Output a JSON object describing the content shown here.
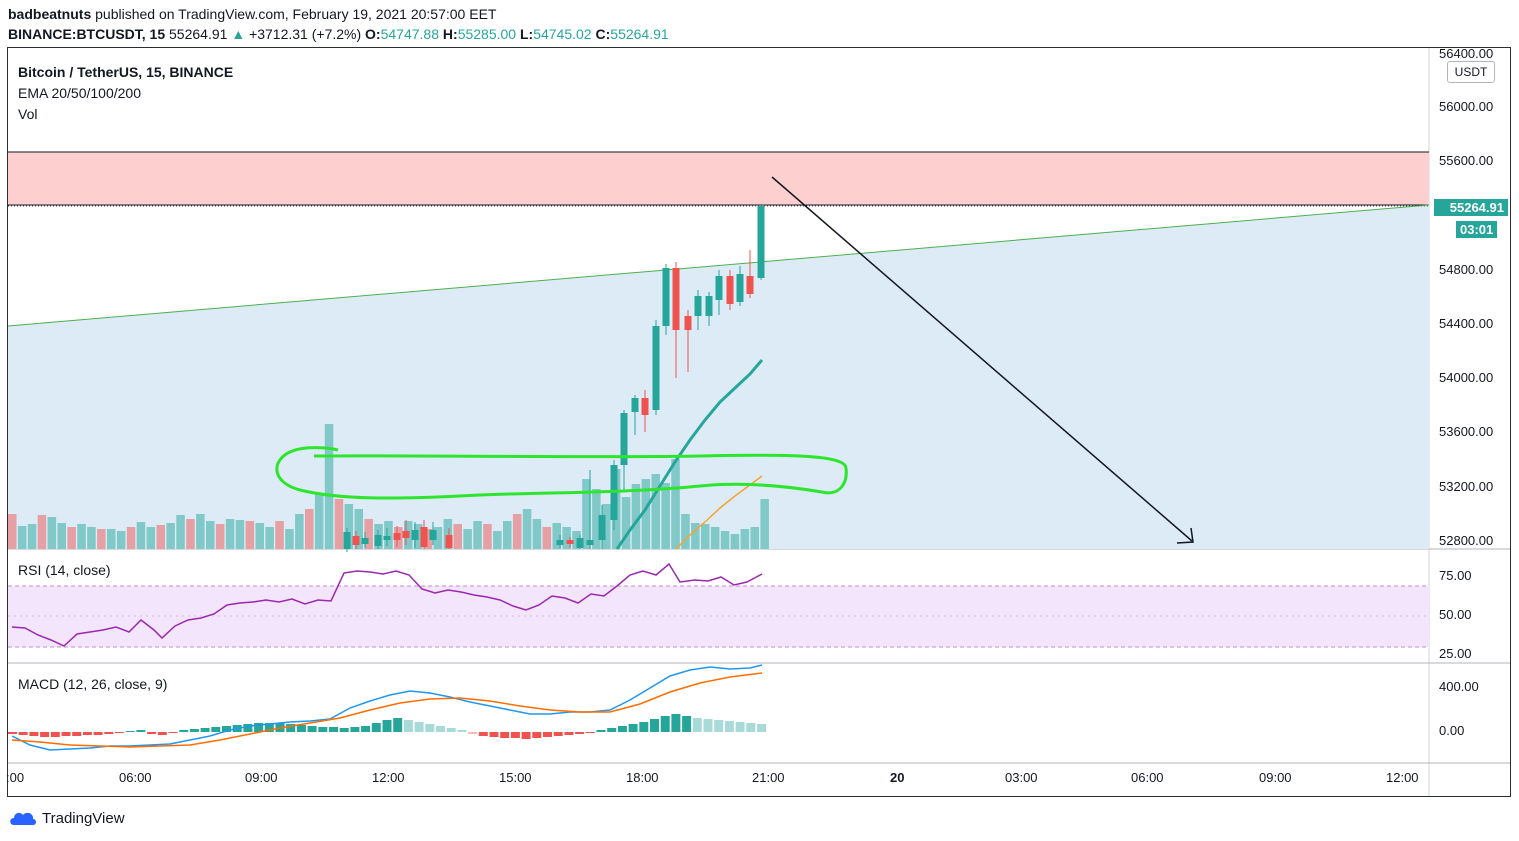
{
  "header": {
    "author": "badbeatnuts",
    "published_text": "published on TradingView.com, February 19, 2021 20:57:00 EET",
    "symbol": "BINANCE:BTCUSDT, 15",
    "price": "55264.91",
    "change": "+3712.31 (+7.2%)",
    "open_label": "O:",
    "open": "54747.88",
    "high_label": "H:",
    "high": "55285.00",
    "low_label": "L:",
    "low": "54745.02",
    "close_label": "C:",
    "close": "55264.91"
  },
  "pane_main": {
    "title": "Bitcoin / TetherUS, 15, BINANCE",
    "ema_label": "EMA 20/50/100/200",
    "vol_label": "Vol",
    "currency": "USDT",
    "price_ticks": [
      "56400.00",
      "56000.00",
      "55600.00",
      "54800.00",
      "54400.00",
      "54000.00",
      "53600.00",
      "53200.00",
      "52800.00"
    ],
    "last_price_badge": "55264.91",
    "countdown_badge": "03:01"
  },
  "pane_rsi": {
    "title": "RSI (14, close)",
    "ticks": [
      "75.00",
      "50.00",
      "25.00"
    ]
  },
  "pane_macd": {
    "title": "MACD (12, 26, close, 9)",
    "ticks": [
      "400.00",
      "0.00"
    ]
  },
  "time_axis": {
    "labels": [
      ":00",
      "06:00",
      "09:00",
      "12:00",
      "15:00",
      "18:00",
      "21:00",
      "20",
      "03:00",
      "06:00",
      "09:00",
      "12:00"
    ]
  },
  "colors": {
    "up": "#26a69a",
    "down": "#ef5350",
    "resistance_zone": "#fdcfcf",
    "channel_fill": "#dcebf6",
    "trendline": "#4caf50",
    "rsi_band": "#f3e5fb",
    "rsi_line": "#9c27b0",
    "macd_line": "#2196f3",
    "signal_line": "#ff6d00"
  },
  "branding": {
    "name": "TradingView"
  }
}
